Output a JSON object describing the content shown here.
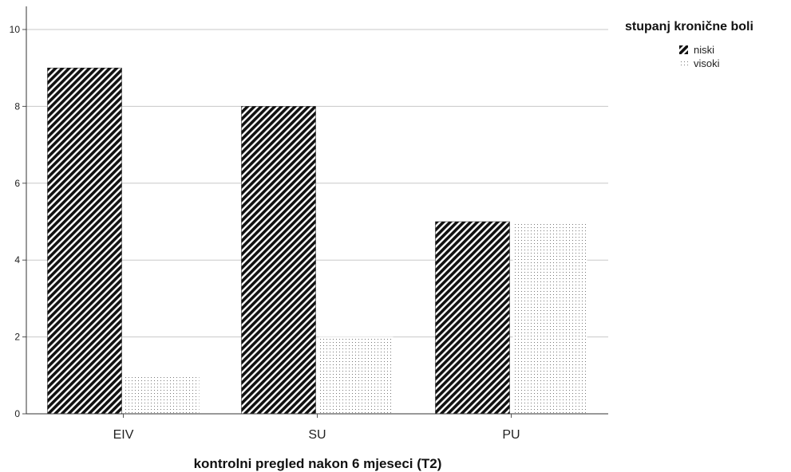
{
  "chart_data": {
    "type": "bar",
    "categories": [
      "EIV",
      "SU",
      "PU"
    ],
    "series": [
      {
        "name": "niski",
        "values": [
          9,
          8,
          5
        ],
        "pattern": "diagonal-hatch",
        "color": "#111111"
      },
      {
        "name": "visoki",
        "values": [
          1,
          2,
          5
        ],
        "pattern": "dotted",
        "color": "#777777"
      }
    ],
    "xlabel": "kontrolni pregled nakon 6 mjeseci (T2)",
    "ylabel": "",
    "ylim": [
      0,
      10
    ],
    "yticks": [
      0,
      2,
      4,
      6,
      8,
      10
    ],
    "grid": true,
    "legend": {
      "title": "stupanj kronične boli",
      "position": "top-right"
    }
  }
}
